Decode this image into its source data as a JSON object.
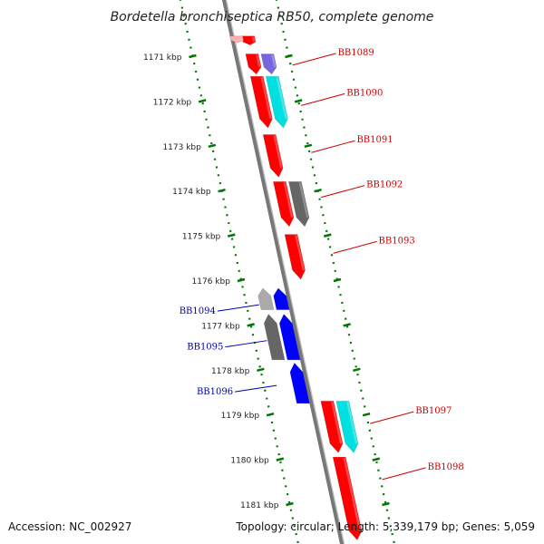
{
  "title": "Bordetella bronchiseptica RB50, complete genome",
  "footer": {
    "accession": "Accession: NC_002927",
    "summary": "Topology: circular; Length: 5,339,179 bp; Genes: 5,059"
  },
  "colors": {
    "backbone": "#777777",
    "scale": "#007700",
    "forward_label": "#cc0000",
    "reverse_label": "#0000aa"
  },
  "scale_kbp": [
    1171,
    1172,
    1173,
    1174,
    1175,
    1176,
    1177,
    1178,
    1179,
    1180,
    1181
  ],
  "scale_labels": [
    "1171 kbp",
    "1172 kbp",
    "1173 kbp",
    "1174 kbp",
    "1175 kbp",
    "1176 kbp",
    "1177 kbp",
    "1178 kbp",
    "1179 kbp",
    "1180 kbp",
    "1181 kbp"
  ],
  "features": [
    {
      "id": "f0",
      "strand": "+",
      "track": "cds",
      "start_kbp": 1170.55,
      "end_kbp": 1170.75,
      "color": "#ff0000"
    },
    {
      "id": "f1",
      "strand": "+",
      "track": "rna",
      "start_kbp": 1170.55,
      "end_kbp": 1170.7,
      "color": "#ffb0b0"
    },
    {
      "id": "f2",
      "strand": "+",
      "track": "cds",
      "start_kbp": 1170.95,
      "end_kbp": 1171.4,
      "color": "#ff0000"
    },
    {
      "id": "f3",
      "strand": "+",
      "track": "mid",
      "start_kbp": 1170.95,
      "end_kbp": 1171.4,
      "color": "#7766dd"
    },
    {
      "id": "f4",
      "strand": "+",
      "track": "cds",
      "start_kbp": 1171.45,
      "end_kbp": 1172.6,
      "color": "#ff0000"
    },
    {
      "id": "f5",
      "strand": "+",
      "track": "mid",
      "start_kbp": 1171.45,
      "end_kbp": 1172.6,
      "color": "#00e0e0"
    },
    {
      "id": "f6",
      "strand": "+",
      "track": "cds",
      "start_kbp": 1172.75,
      "end_kbp": 1173.7,
      "color": "#ff0000"
    },
    {
      "id": "f7",
      "strand": "+",
      "track": "cds",
      "start_kbp": 1173.8,
      "end_kbp": 1174.8,
      "color": "#ff0000"
    },
    {
      "id": "f8",
      "strand": "+",
      "track": "mid",
      "start_kbp": 1173.8,
      "end_kbp": 1174.8,
      "color": "#666666"
    },
    {
      "id": "f9",
      "strand": "+",
      "track": "cds",
      "start_kbp": 1174.98,
      "end_kbp": 1175.98,
      "color": "#ff0000"
    },
    {
      "id": "f10",
      "strand": "-",
      "track": "mid",
      "start_kbp": 1176.18,
      "end_kbp": 1176.66,
      "color": "#aaaaaa"
    },
    {
      "id": "f11",
      "strand": "-",
      "track": "cds",
      "start_kbp": 1176.18,
      "end_kbp": 1176.66,
      "color": "#0000ff"
    },
    {
      "id": "f12",
      "strand": "-",
      "track": "mid",
      "start_kbp": 1176.76,
      "end_kbp": 1177.78,
      "color": "#666666"
    },
    {
      "id": "f13",
      "strand": "-",
      "track": "cds",
      "start_kbp": 1176.76,
      "end_kbp": 1177.78,
      "color": "#0000ff"
    },
    {
      "id": "f14",
      "strand": "-",
      "track": "cds",
      "start_kbp": 1177.85,
      "end_kbp": 1178.75,
      "color": "#0000ff"
    },
    {
      "id": "f15",
      "strand": "+",
      "track": "cds",
      "start_kbp": 1178.7,
      "end_kbp": 1179.85,
      "color": "#ff0000"
    },
    {
      "id": "f16",
      "strand": "+",
      "track": "mid",
      "start_kbp": 1178.7,
      "end_kbp": 1179.85,
      "color": "#00e0e0"
    },
    {
      "id": "f17",
      "strand": "+",
      "track": "cds",
      "start_kbp": 1179.95,
      "end_kbp": 1181.8,
      "color": "#ff0000"
    }
  ],
  "gene_labels": [
    {
      "name": "BB1089",
      "strand": "+",
      "at_kbp": 1171.2
    },
    {
      "name": "BB1090",
      "strand": "+",
      "at_kbp": 1172.1
    },
    {
      "name": "BB1091",
      "strand": "+",
      "at_kbp": 1173.15
    },
    {
      "name": "BB1092",
      "strand": "+",
      "at_kbp": 1174.15
    },
    {
      "name": "BB1093",
      "strand": "+",
      "at_kbp": 1175.4
    },
    {
      "name": "BB1094",
      "strand": "-",
      "at_kbp": 1176.55
    },
    {
      "name": "BB1095",
      "strand": "-",
      "at_kbp": 1177.35
    },
    {
      "name": "BB1096",
      "strand": "-",
      "at_kbp": 1178.35
    },
    {
      "name": "BB1097",
      "strand": "+",
      "at_kbp": 1179.2
    },
    {
      "name": "BB1098",
      "strand": "+",
      "at_kbp": 1180.45
    }
  ]
}
